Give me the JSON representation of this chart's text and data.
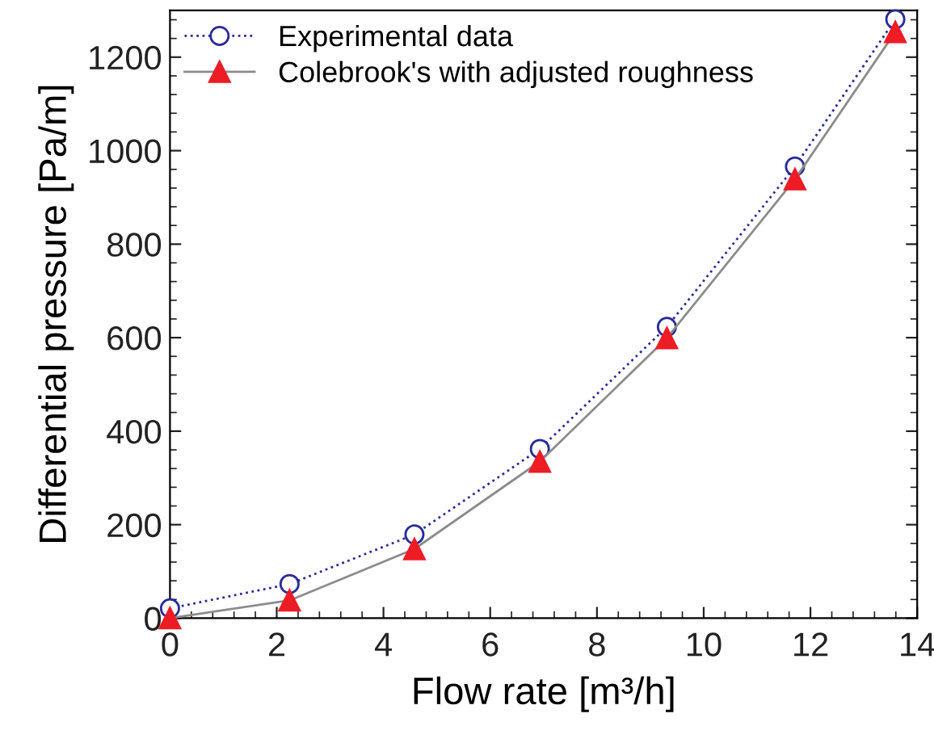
{
  "chart_data": {
    "type": "line",
    "xlabel": "Flow rate [m³/h]",
    "ylabel": "Differential pressure [Pa/m]",
    "xlim": [
      0,
      14
    ],
    "xticks": [
      0,
      2,
      4,
      6,
      8,
      10,
      12,
      14
    ],
    "ylim": [
      0,
      1300
    ],
    "yticks": [
      0,
      200,
      400,
      600,
      800,
      1000,
      1200
    ],
    "grid": false,
    "legend": "top left",
    "series": [
      {
        "name": "Experimental data",
        "color": "#2b2b9b",
        "marker": "circle",
        "line_style": "dotted",
        "x": [
          0,
          2.24,
          4.58,
          6.93,
          9.31,
          11.71,
          13.59
        ],
        "values": [
          21,
          73,
          179,
          362,
          623,
          966,
          1281
        ]
      },
      {
        "name": "Colebrook's with adjusted roughness",
        "color": "#ee1c25",
        "marker": "triangle",
        "line_style": "solid",
        "x": [
          0,
          2.24,
          4.58,
          6.93,
          9.31,
          11.71,
          13.59
        ],
        "values": [
          0,
          38,
          148,
          335,
          599,
          939,
          1254
        ]
      }
    ]
  }
}
